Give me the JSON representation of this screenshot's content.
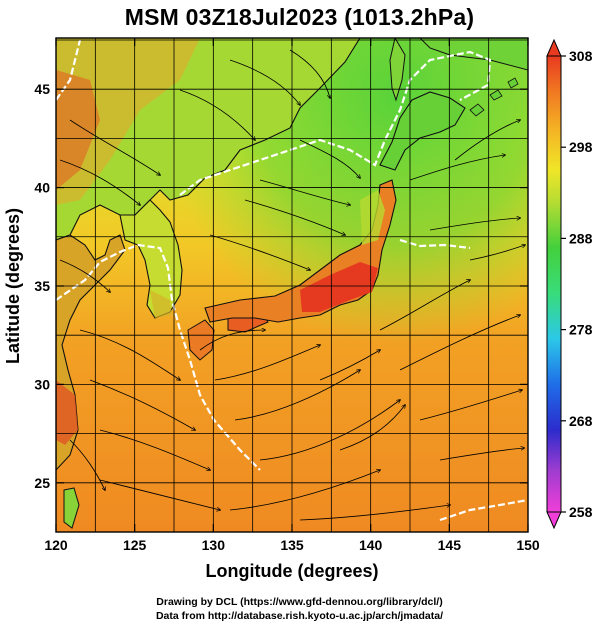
{
  "title": "MSM 03Z18Jul2023 (1013.2hPa)",
  "map": {
    "lon_range": [
      120,
      150
    ],
    "lat_range": [
      22.5,
      47.6
    ],
    "x_ticks": [
      120,
      125,
      130,
      135,
      140,
      145,
      150
    ],
    "y_ticks": [
      25,
      30,
      35,
      40,
      45
    ],
    "xlabel": "Longitude (degrees)",
    "ylabel": "Latitude  (degrees)",
    "grid": true
  },
  "colorbar": {
    "min": 258,
    "max": 308,
    "tick_values": [
      308,
      298,
      288,
      278,
      268,
      258
    ],
    "colors": [
      "#f03fd8",
      "#a03cd0",
      "#2c2ccc",
      "#1f6ee8",
      "#2cc8e8",
      "#38dc7a",
      "#44d03c",
      "#b6dc32",
      "#f0e628",
      "#f4b224",
      "#f07222",
      "#e83a20"
    ]
  },
  "credits": {
    "line1": "Drawing by DCL (https://www.gfd-dennou.org/library/dcl/)",
    "line2": "Data from http://database.rish.kyoto-u.ac.jp/arch/jmadata/"
  }
}
